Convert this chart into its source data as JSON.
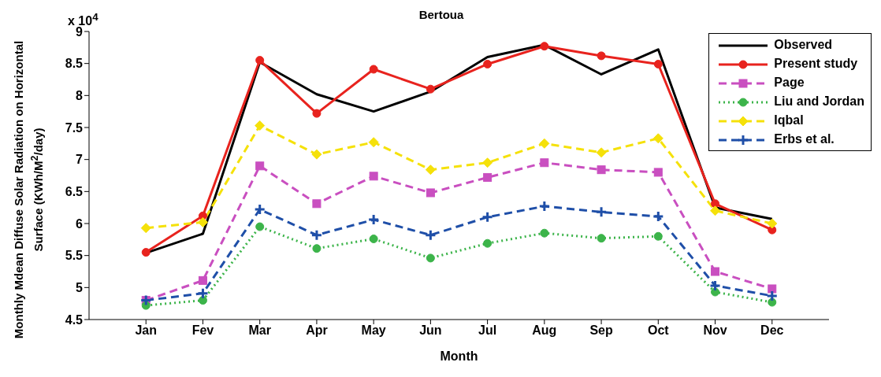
{
  "chart_data": {
    "type": "line",
    "title": "Bertoua",
    "xlabel": "Month",
    "ylabel": "Monthly Mdean Diffuse Solar Radiation on Horizontal Surface (KWh/M$^{2}$/day)",
    "annotations": [
      "x 10$^{4}$"
    ],
    "categories": [
      "Jan",
      "Fev",
      "Mar",
      "Apr",
      "May",
      "Jun",
      "Jul",
      "Aug",
      "Sep",
      "Oct",
      "Nov",
      "Dec"
    ],
    "ylim": [
      4.5,
      9
    ],
    "yticks": [
      4.5,
      5,
      5.5,
      6,
      6.5,
      7,
      7.5,
      8,
      8.5,
      9
    ],
    "grid": false,
    "legend": "top right",
    "series": [
      {
        "name": "Observed",
        "color": "#000000",
        "marker": "none",
        "line_style": "solid",
        "values": [
          5.54,
          5.84,
          8.52,
          8.02,
          7.75,
          8.06,
          8.6,
          8.79,
          8.33,
          8.72,
          6.25,
          6.07
        ]
      },
      {
        "name": "Present study",
        "color": "#e8231e",
        "marker": "circle",
        "line_style": "solid",
        "values": [
          5.55,
          6.12,
          8.55,
          7.72,
          8.41,
          8.1,
          8.49,
          8.77,
          8.62,
          8.49,
          6.31,
          5.9
        ]
      },
      {
        "name": "Page",
        "color": "#c94fc0",
        "marker": "square",
        "line_style": "dashed",
        "values": [
          4.8,
          5.11,
          6.9,
          6.31,
          6.74,
          6.48,
          6.72,
          6.95,
          6.84,
          6.8,
          5.25,
          4.98
        ]
      },
      {
        "name": "Liu and Jordan",
        "color": "#3cb44a",
        "marker": "circle",
        "line_style": "dotted",
        "values": [
          4.72,
          4.8,
          5.95,
          5.61,
          5.76,
          5.46,
          5.69,
          5.85,
          5.77,
          5.8,
          4.93,
          4.77
        ]
      },
      {
        "name": "Iqbal",
        "color": "#f5e10a",
        "marker": "diamond",
        "line_style": "dashed",
        "values": [
          5.93,
          6.02,
          7.53,
          7.08,
          7.27,
          6.84,
          6.95,
          7.25,
          7.11,
          7.33,
          6.2,
          6.0
        ]
      },
      {
        "name": "Erbs et al.",
        "color": "#1f4fa8",
        "marker": "cross",
        "line_style": "dashed",
        "values": [
          4.8,
          4.91,
          6.22,
          5.82,
          6.06,
          5.82,
          6.1,
          6.27,
          6.18,
          6.11,
          5.03,
          4.87
        ]
      }
    ]
  }
}
